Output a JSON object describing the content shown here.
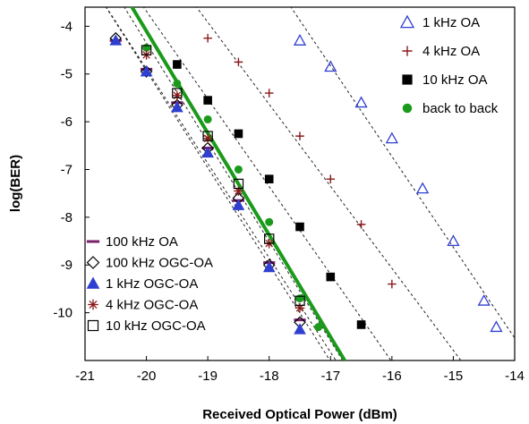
{
  "chart_data": {
    "type": "scatter",
    "title": "",
    "xlabel": "Received Optical Power (dBm)",
    "ylabel": "log(BER)",
    "xlim": [
      -21,
      -14
    ],
    "ylim": [
      -11,
      -3.6
    ],
    "xticks": [
      -21,
      -20,
      -19,
      -18,
      -17,
      -16,
      -15,
      -14
    ],
    "yticks": [
      -4,
      -5,
      -6,
      -7,
      -8,
      -9,
      -10
    ],
    "grid": false,
    "series": [
      {
        "name": "1 kHz  OA",
        "marker": "triangle-open",
        "color": "#2f3fd0",
        "x": [
          -17.5,
          -17.0,
          -16.5,
          -16.0,
          -15.5,
          -15.0,
          -14.5,
          -14.3
        ],
        "y": [
          -4.3,
          -4.85,
          -5.6,
          -6.35,
          -7.4,
          -8.5,
          -9.75,
          -10.3
        ]
      },
      {
        "name": "4 kHz  OA",
        "marker": "plus",
        "color": "#8b1a1a",
        "x": [
          -19.0,
          -18.5,
          -18.0,
          -17.5,
          -17.0,
          -16.5,
          -16.0
        ],
        "y": [
          -4.25,
          -4.75,
          -5.4,
          -6.3,
          -7.2,
          -8.15,
          -9.4
        ]
      },
      {
        "name": "10 kHz  OA",
        "marker": "square-filled",
        "color": "#000000",
        "x": [
          -19.5,
          -19.0,
          -18.5,
          -18.0,
          -17.5,
          -17.0,
          -16.5
        ],
        "y": [
          -4.8,
          -5.55,
          -6.25,
          -7.2,
          -8.2,
          -9.25,
          -10.25
        ]
      },
      {
        "name": "back to back",
        "marker": "circle-filled",
        "color": "#1a9a1a",
        "x": [
          -20.0,
          -19.5,
          -19.0,
          -18.5,
          -18.0,
          -17.5,
          -17.2
        ],
        "y": [
          -4.45,
          -5.2,
          -5.95,
          -7.0,
          -8.1,
          -9.7,
          -10.3
        ]
      },
      {
        "name": "100 kHz OA",
        "marker": "dash",
        "color": "#7a1f6a",
        "x": [
          -20.5,
          -20.0,
          -19.5,
          -19.0,
          -18.5,
          -18.0,
          -17.5
        ],
        "y": [
          -4.3,
          -4.9,
          -5.6,
          -6.55,
          -7.65,
          -8.95,
          -10.15
        ]
      },
      {
        "name": "100 kHz OGC-OA",
        "marker": "diamond-open",
        "color": "#000000",
        "x": [
          -20.5,
          -20.0,
          -19.5,
          -19.0,
          -18.5,
          -18.0,
          -17.5
        ],
        "y": [
          -4.25,
          -4.95,
          -5.65,
          -6.55,
          -7.6,
          -9.0,
          -10.2
        ]
      },
      {
        "name": "1 kHz  OGC-OA",
        "marker": "triangle-filled",
        "color": "#2f3fd0",
        "x": [
          -20.5,
          -20.0,
          -19.5,
          -19.0,
          -18.5,
          -18.0,
          -17.5
        ],
        "y": [
          -4.3,
          -4.95,
          -5.7,
          -6.65,
          -7.75,
          -9.05,
          -10.35
        ]
      },
      {
        "name": "4 kHz  OGC-OA",
        "marker": "asterisk",
        "color": "#8b1a1a",
        "x": [
          -20.0,
          -19.5,
          -19.0,
          -18.5,
          -18.0,
          -17.5
        ],
        "y": [
          -4.6,
          -5.45,
          -6.35,
          -7.45,
          -8.55,
          -9.9
        ]
      },
      {
        "name": "10 kHz  OGC-OA",
        "marker": "square-open",
        "color": "#000000",
        "x": [
          -20.0,
          -19.5,
          -19.0,
          -18.5,
          -18.0,
          -17.5
        ],
        "y": [
          -4.5,
          -5.4,
          -6.3,
          -7.3,
          -8.45,
          -9.75
        ]
      }
    ],
    "legend_top_right": [
      "1 kHz  OA",
      "4 kHz  OA",
      "10 kHz  OA",
      "back to back"
    ],
    "legend_bottom_left": [
      "100 kHz OA",
      "100 kHz OGC-OA",
      "1 kHz  OGC-OA",
      "4 kHz  OGC-OA",
      "10 kHz  OGC-OA"
    ]
  }
}
